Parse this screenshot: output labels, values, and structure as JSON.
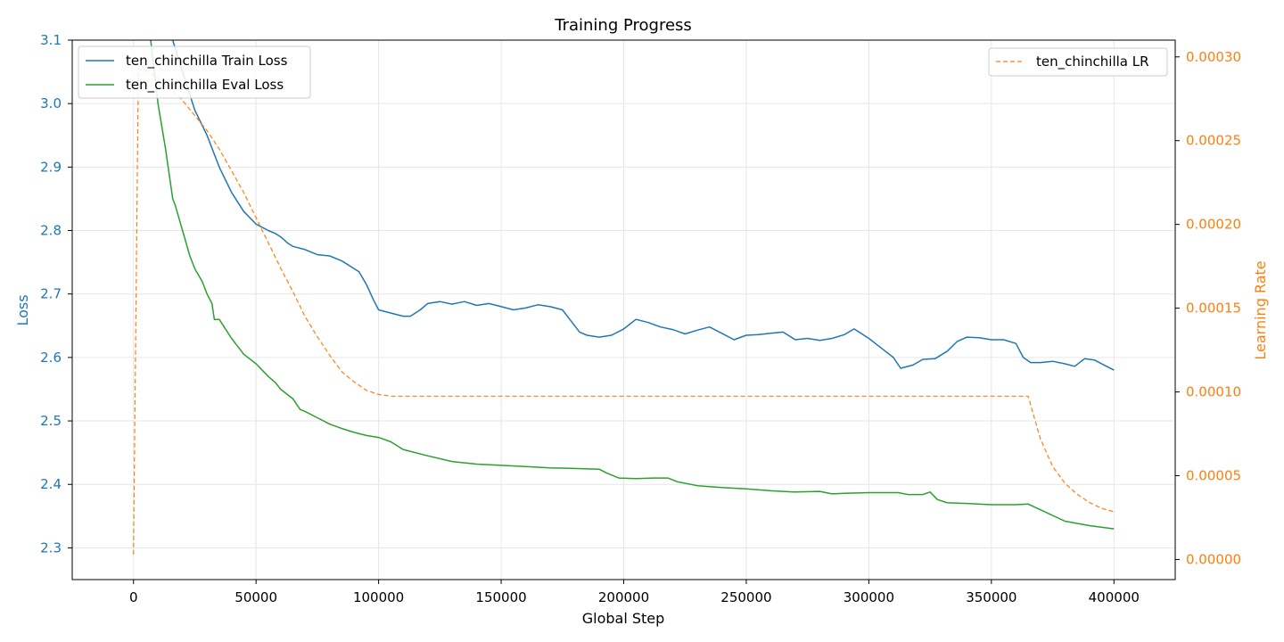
{
  "chart_data": {
    "type": "line",
    "title": "Training Progress",
    "xlabel": "Global Step",
    "ylabel_left": "Loss",
    "ylabel_right": "Learning Rate",
    "xlim": [
      -25000,
      425000
    ],
    "ylim_left": [
      2.25,
      3.1
    ],
    "ylim_right": [
      -1.2e-05,
      0.00031
    ],
    "x_ticks": [
      0,
      50000,
      100000,
      150000,
      200000,
      250000,
      300000,
      350000,
      400000
    ],
    "x_tick_labels": [
      "0",
      "50000",
      "100000",
      "150000",
      "200000",
      "250000",
      "300000",
      "350000",
      "400000"
    ],
    "y_left_ticks": [
      2.3,
      2.4,
      2.5,
      2.6,
      2.7,
      2.8,
      2.9,
      3.0,
      3.1
    ],
    "y_left_tick_labels": [
      "2.3",
      "2.4",
      "2.5",
      "2.6",
      "2.7",
      "2.8",
      "2.9",
      "3.0",
      "3.1"
    ],
    "y_right_ticks": [
      0.0,
      5e-05,
      0.0001,
      0.00015,
      0.0002,
      0.00025,
      0.0003
    ],
    "y_right_tick_labels": [
      "0.00000",
      "0.00005",
      "0.00010",
      "0.00015",
      "0.00020",
      "0.00025",
      "0.00030"
    ],
    "grid": true,
    "legend_left_placement": "top-left",
    "legend_right_placement": "top-right",
    "colors": {
      "train": "#1f77b4",
      "eval": "#2ca02c",
      "lr": "#ff7f0e",
      "grid": "#e6e6e6",
      "axis": "#000000"
    },
    "series": [
      {
        "name": "ten_chinchilla Train Loss",
        "axis": "left",
        "style": "solid",
        "color": "#1f77b4",
        "x": [
          16000,
          20000,
          25000,
          30000,
          35000,
          40000,
          45000,
          50000,
          55000,
          58000,
          60000,
          63000,
          65000,
          70000,
          75000,
          80000,
          85000,
          88000,
          92000,
          95000,
          98000,
          100000,
          105000,
          110000,
          113000,
          117000,
          120000,
          125000,
          130000,
          135000,
          140000,
          145000,
          150000,
          155000,
          160000,
          165000,
          170000,
          175000,
          178000,
          182000,
          185000,
          190000,
          195000,
          200000,
          205000,
          210000,
          215000,
          220000,
          225000,
          230000,
          235000,
          240000,
          245000,
          250000,
          255000,
          260000,
          265000,
          270000,
          275000,
          280000,
          285000,
          290000,
          294000,
          300000,
          305000,
          310000,
          313000,
          318000,
          322000,
          327000,
          332000,
          336000,
          340000,
          345000,
          350000,
          355000,
          360000,
          363000,
          366000,
          370000,
          375000,
          380000,
          384000,
          388000,
          392000,
          396000,
          400000
        ],
        "y": [
          3.1,
          3.05,
          2.99,
          2.95,
          2.9,
          2.86,
          2.83,
          2.81,
          2.8,
          2.795,
          2.79,
          2.78,
          2.775,
          2.77,
          2.762,
          2.76,
          2.752,
          2.745,
          2.735,
          2.715,
          2.69,
          2.675,
          2.67,
          2.665,
          2.665,
          2.675,
          2.685,
          2.688,
          2.684,
          2.688,
          2.682,
          2.685,
          2.68,
          2.675,
          2.678,
          2.683,
          2.68,
          2.675,
          2.66,
          2.64,
          2.635,
          2.632,
          2.635,
          2.645,
          2.66,
          2.655,
          2.648,
          2.644,
          2.637,
          2.643,
          2.648,
          2.638,
          2.628,
          2.635,
          2.636,
          2.638,
          2.64,
          2.628,
          2.63,
          2.627,
          2.63,
          2.636,
          2.645,
          2.63,
          2.615,
          2.6,
          2.583,
          2.588,
          2.597,
          2.598,
          2.61,
          2.625,
          2.632,
          2.631,
          2.628,
          2.628,
          2.622,
          2.6,
          2.592,
          2.592,
          2.594,
          2.59,
          2.586,
          2.598,
          2.596,
          2.588,
          2.58
        ]
      },
      {
        "name": "ten_chinchilla Eval Loss",
        "axis": "left",
        "style": "solid",
        "color": "#2ca02c",
        "x": [
          7000,
          10000,
          13000,
          16000,
          17000,
          20000,
          23000,
          25000,
          28000,
          30000,
          32000,
          33000,
          35000,
          40000,
          45000,
          50000,
          55000,
          58000,
          60000,
          65000,
          68000,
          70000,
          75000,
          80000,
          85000,
          90000,
          95000,
          100000,
          105000,
          110000,
          120000,
          130000,
          140000,
          150000,
          160000,
          170000,
          180000,
          190000,
          193000,
          198000,
          205000,
          212000,
          218000,
          222000,
          230000,
          240000,
          250000,
          260000,
          270000,
          280000,
          285000,
          290000,
          300000,
          312000,
          316000,
          322000,
          325000,
          328000,
          332000,
          340000,
          350000,
          360000,
          365000,
          370000,
          380000,
          390000,
          400000
        ],
        "y": [
          3.1,
          3.0,
          2.93,
          2.85,
          2.84,
          2.8,
          2.76,
          2.74,
          2.72,
          2.7,
          2.685,
          2.66,
          2.66,
          2.63,
          2.605,
          2.59,
          2.57,
          2.56,
          2.55,
          2.535,
          2.518,
          2.515,
          2.505,
          2.495,
          2.488,
          2.482,
          2.477,
          2.474,
          2.467,
          2.455,
          2.445,
          2.436,
          2.432,
          2.43,
          2.428,
          2.426,
          2.425,
          2.424,
          2.418,
          2.41,
          2.409,
          2.41,
          2.41,
          2.404,
          2.398,
          2.395,
          2.393,
          2.39,
          2.388,
          2.389,
          2.385,
          2.386,
          2.387,
          2.387,
          2.384,
          2.384,
          2.388,
          2.376,
          2.371,
          2.37,
          2.368,
          2.368,
          2.369,
          2.36,
          2.342,
          2.335,
          2.33
        ]
      },
      {
        "name": "ten_chinchilla LR",
        "axis": "right",
        "style": "dashed",
        "color": "#ff7f0e",
        "x": [
          0,
          2000,
          5000,
          10000,
          15000,
          20000,
          25000,
          30000,
          35000,
          40000,
          45000,
          50000,
          55000,
          60000,
          65000,
          70000,
          75000,
          80000,
          85000,
          90000,
          95000,
          100000,
          105000,
          110000,
          200000,
          300000,
          365000,
          370000,
          375000,
          380000,
          385000,
          390000,
          395000,
          400000
        ],
        "y": [
          3e-06,
          0.000293,
          0.000292,
          0.000287,
          0.000281,
          0.000274,
          0.000265,
          0.000256,
          0.000245,
          0.000232,
          0.000219,
          0.000204,
          0.000189,
          0.000174,
          0.00016,
          0.000145,
          0.000133,
          0.000122,
          0.000112,
          0.000106,
          0.000101,
          9.85e-05,
          9.75e-05,
          9.75e-05,
          9.75e-05,
          9.75e-05,
          9.75e-05,
          7.2e-05,
          5.55e-05,
          4.55e-05,
          3.9e-05,
          3.4e-05,
          3.05e-05,
          2.85e-05
        ]
      }
    ]
  }
}
